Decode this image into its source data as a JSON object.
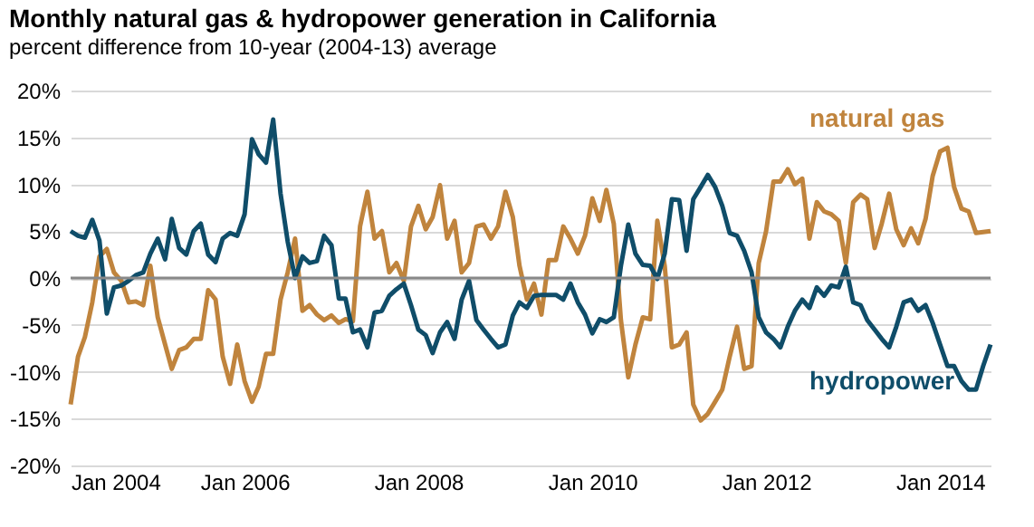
{
  "chart_data": {
    "type": "line",
    "title": "Monthly natural gas & hydropower generation in California",
    "subtitle": "percent difference  from  10-year (2004-13) average",
    "x": [
      "2004-01",
      "2004-02",
      "2004-03",
      "2004-04",
      "2004-05",
      "2004-06",
      "2004-07",
      "2004-08",
      "2004-09",
      "2004-10",
      "2004-11",
      "2004-12",
      "2005-01",
      "2005-02",
      "2005-03",
      "2005-04",
      "2005-05",
      "2005-06",
      "2005-07",
      "2005-08",
      "2005-09",
      "2005-10",
      "2005-11",
      "2005-12",
      "2006-01",
      "2006-02",
      "2006-03",
      "2006-04",
      "2006-05",
      "2006-06",
      "2006-07",
      "2006-08",
      "2006-09",
      "2006-10",
      "2006-11",
      "2006-12",
      "2007-01",
      "2007-02",
      "2007-03",
      "2007-04",
      "2007-05",
      "2007-06",
      "2007-07",
      "2007-08",
      "2007-09",
      "2007-10",
      "2007-11",
      "2007-12",
      "2008-01",
      "2008-02",
      "2008-03",
      "2008-04",
      "2008-05",
      "2008-06",
      "2008-07",
      "2008-08",
      "2008-09",
      "2008-10",
      "2008-11",
      "2008-12",
      "2009-01",
      "2009-02",
      "2009-03",
      "2009-04",
      "2009-05",
      "2009-06",
      "2009-07",
      "2009-08",
      "2009-09",
      "2009-10",
      "2009-11",
      "2009-12",
      "2010-01",
      "2010-02",
      "2010-03",
      "2010-04",
      "2010-05",
      "2010-06",
      "2010-07",
      "2010-08",
      "2010-09",
      "2010-10",
      "2010-11",
      "2010-12",
      "2011-01",
      "2011-02",
      "2011-03",
      "2011-04",
      "2011-05",
      "2011-06",
      "2011-07",
      "2011-08",
      "2011-09",
      "2011-10",
      "2011-11",
      "2011-12",
      "2012-01",
      "2012-02",
      "2012-03",
      "2012-04",
      "2012-05",
      "2012-06",
      "2012-07",
      "2012-08",
      "2012-09",
      "2012-10",
      "2012-11",
      "2012-12",
      "2013-01",
      "2013-02",
      "2013-03",
      "2013-04",
      "2013-05",
      "2013-06",
      "2013-07",
      "2013-08",
      "2013-09",
      "2013-10",
      "2013-11",
      "2013-12",
      "2014-01",
      "2014-02",
      "2014-03",
      "2014-04",
      "2014-05",
      "2014-06",
      "2014-07",
      "2014-08"
    ],
    "series": [
      {
        "name": "natural gas",
        "color": "#c0843d",
        "values": [
          -13.5,
          -8.4,
          -6.3,
          -2.6,
          2.3,
          3.1,
          0.6,
          -0.3,
          -2.6,
          -2.5,
          -2.9,
          1.3,
          -4.2,
          -7.1,
          -9.7,
          -7.7,
          -7.4,
          -6.5,
          -6.5,
          -1.3,
          -2.3,
          -8.4,
          -11.3,
          -7.1,
          -11,
          -13.2,
          -11.6,
          -8.1,
          -8.1,
          -2.3,
          0.6,
          4.2,
          -3.5,
          -2.9,
          -3.9,
          -4.5,
          -4,
          -4.8,
          -4.4,
          -4.6,
          5.5,
          9.2,
          4.2,
          5,
          0.6,
          1.6,
          -0.3,
          5.5,
          7.7,
          5.2,
          6.5,
          9.9,
          4.2,
          6.1,
          0.6,
          1.6,
          5.5,
          5.7,
          4.2,
          5.5,
          9.2,
          6.5,
          1.3,
          -2.3,
          -0.6,
          -3.9,
          1.9,
          1.9,
          5.5,
          4.2,
          2.6,
          4.5,
          8.5,
          6.1,
          9.4,
          5.8,
          -4.5,
          -10.6,
          -7.1,
          -4.2,
          -4.4,
          6.1,
          1.3,
          -7.4,
          -7.1,
          -5.8,
          -13.5,
          -15.2,
          -14.5,
          -13.2,
          -11.9,
          -8.4,
          -5.2,
          -9.7,
          -9.4,
          1.6,
          5,
          10.3,
          10.3,
          11.6,
          10,
          10.6,
          4.2,
          8.1,
          7.1,
          6.8,
          6.1,
          1.6,
          8.1,
          8.9,
          8.4,
          3.2,
          5.8,
          9,
          5.2,
          3.5,
          5.3,
          3.7,
          6.3,
          10.9,
          13.5,
          13.9,
          9.7,
          7.4,
          7.1,
          4.8,
          4.9,
          5
        ]
      },
      {
        "name": "hydropower",
        "color": "#0f4d69",
        "values": [
          5,
          4.5,
          4.3,
          6.2,
          4,
          -3.8,
          -1,
          -0.8,
          -0.3,
          0.3,
          0.6,
          2.6,
          4.2,
          2,
          6.3,
          3.2,
          2.5,
          5,
          5.8,
          2.5,
          1.7,
          4.2,
          4.8,
          4.5,
          6.8,
          14.8,
          13.2,
          12.3,
          16.9,
          9,
          3.9,
          0,
          2.3,
          1.6,
          1.8,
          4.5,
          3.5,
          -2.2,
          -2.2,
          -5.8,
          -5.5,
          -7.4,
          -3.7,
          -3.5,
          -1.9,
          -1.2,
          -0.6,
          -2.9,
          -5.5,
          -6.1,
          -8,
          -5.8,
          -4.7,
          -6.5,
          -2.3,
          -0.3,
          -4.5,
          -5.5,
          -6.5,
          -7.4,
          -7.1,
          -4,
          -2.6,
          -3.2,
          -1.9,
          -1.8,
          -1.8,
          -1.8,
          -2.3,
          -0.6,
          -2.6,
          -3.9,
          -5.9,
          -4.4,
          -4.7,
          -4.2,
          1.3,
          5.7,
          2.6,
          1.4,
          1.3,
          -0.1,
          2.6,
          8.4,
          8.3,
          2.9,
          8.4,
          9.7,
          11,
          9.7,
          7.7,
          4.8,
          4.5,
          2.9,
          0.6,
          -4.2,
          -5.8,
          -6.5,
          -7.4,
          -5.2,
          -3.5,
          -2.3,
          -3.2,
          -1,
          -1.9,
          -0.8,
          -1,
          1.2,
          -2.6,
          -2.9,
          -4.5,
          -5.5,
          -6.5,
          -7.4,
          -5.2,
          -2.6,
          -2.3,
          -3.5,
          -2.9,
          -4.8,
          -7.1,
          -9.4,
          -9.4,
          -11,
          -11.9,
          -11.9,
          -9.4,
          -7.1
        ]
      }
    ],
    "xlim": [
      "2004-01",
      "2014-08"
    ],
    "xticks": [
      {
        "value": "2004-01",
        "label": "Jan 2004"
      },
      {
        "value": "2006-01",
        "label": "Jan 2006"
      },
      {
        "value": "2008-01",
        "label": "Jan 2008"
      },
      {
        "value": "2010-01",
        "label": "Jan 2010"
      },
      {
        "value": "2012-01",
        "label": "Jan 2012"
      },
      {
        "value": "2014-01",
        "label": "Jan 2014"
      }
    ],
    "ylim": [
      -20,
      20
    ],
    "yticks": [
      {
        "value": -20,
        "label": "-20%"
      },
      {
        "value": -15,
        "label": "-15%"
      },
      {
        "value": -10,
        "label": "-10%"
      },
      {
        "value": -5,
        "label": "-5%"
      },
      {
        "value": 0,
        "label": "0%"
      },
      {
        "value": 5,
        "label": "5%"
      },
      {
        "value": 10,
        "label": "10%"
      },
      {
        "value": 15,
        "label": "15%"
      },
      {
        "value": 20,
        "label": "20%"
      }
    ],
    "grid": "y",
    "legend": false,
    "ref_lines": [
      {
        "axis": "y",
        "value": 0,
        "color": "#888888"
      }
    ]
  }
}
